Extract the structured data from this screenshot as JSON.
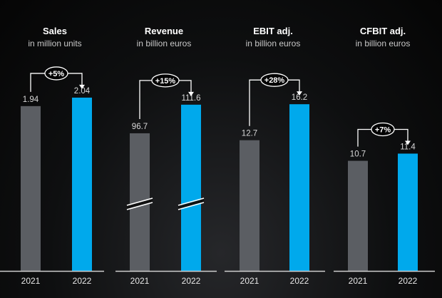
{
  "colors": {
    "prev": "#5b5e63",
    "curr": "#00a9ec"
  },
  "chart_data": [
    {
      "type": "bar",
      "title": "Sales",
      "subtitle": "in million units",
      "categories": [
        "2021",
        "2022"
      ],
      "values": [
        1.94,
        2.04
      ],
      "labels": [
        "1.94",
        "2.04"
      ],
      "change": "+5%",
      "ylim": [
        0,
        2.35
      ],
      "broken_axis": false
    },
    {
      "type": "bar",
      "title": "Revenue",
      "subtitle": "in billion euros",
      "categories": [
        "2021",
        "2022"
      ],
      "values": [
        96.7,
        111.6
      ],
      "labels": [
        "96.7",
        "111.6"
      ],
      "change": "+15%",
      "ylim": [
        25,
        129
      ],
      "broken_axis": true
    },
    {
      "type": "bar",
      "title": "EBIT adj.",
      "subtitle": "in billion euros",
      "categories": [
        "2021",
        "2022"
      ],
      "values": [
        12.7,
        16.2
      ],
      "labels": [
        "12.7",
        "16.2"
      ],
      "change": "+28%",
      "ylim": [
        0,
        19.4
      ],
      "broken_axis": false
    },
    {
      "type": "bar",
      "title": "CFBIT adj.",
      "subtitle": "in billion euros",
      "categories": [
        "2021",
        "2022"
      ],
      "values": [
        10.7,
        11.4
      ],
      "labels": [
        "10.7",
        "11.4"
      ],
      "change": "+7%",
      "ylim": [
        0,
        19.4
      ],
      "broken_axis": false
    }
  ]
}
